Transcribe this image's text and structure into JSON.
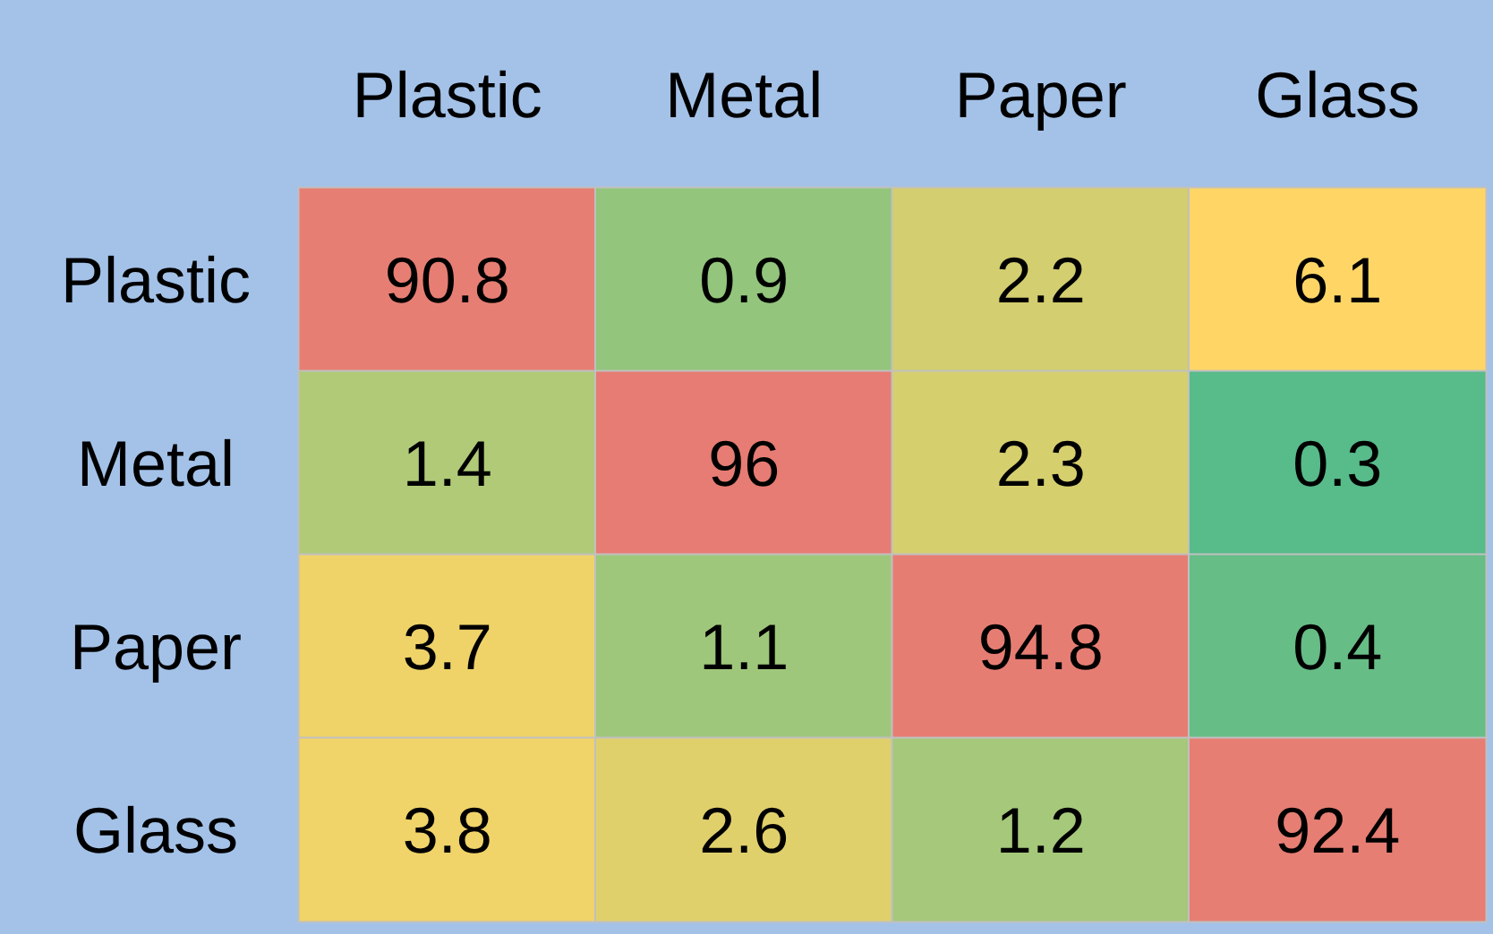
{
  "chart_data": {
    "type": "heatmap",
    "categories": [
      "Plastic",
      "Metal",
      "Paper",
      "Glass"
    ],
    "y_categories": [
      "Plastic",
      "Metal",
      "Paper",
      "Glass"
    ],
    "cells": [
      [
        90.8,
        0.9,
        2.2,
        6.1
      ],
      [
        1.4,
        96,
        2.3,
        0.3
      ],
      [
        3.7,
        1.1,
        94.8,
        0.4
      ],
      [
        3.8,
        2.6,
        1.2,
        92.4
      ]
    ],
    "data_labels": true
  }
}
